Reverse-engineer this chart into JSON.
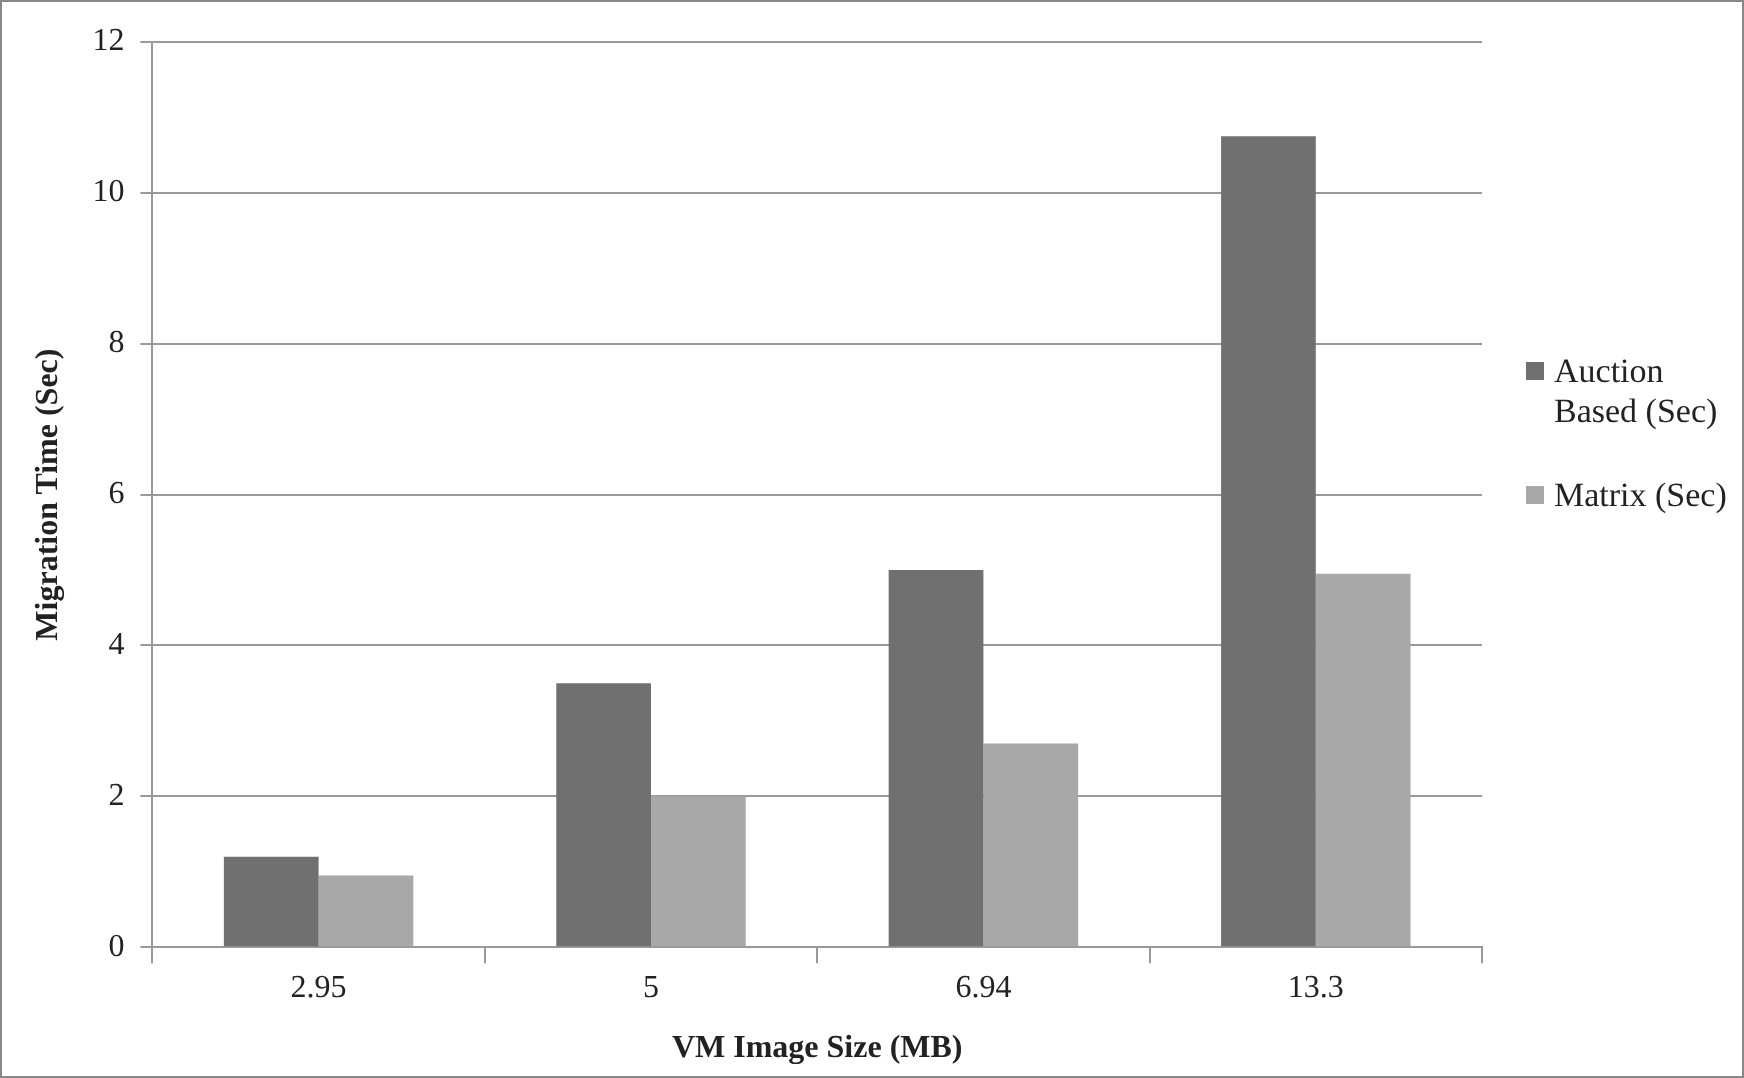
{
  "chart_data": {
    "type": "bar",
    "xlabel": "VM Image Size (MB)",
    "ylabel": "Migration Time (Sec)",
    "categories": [
      "2.95",
      "5",
      "6.94",
      "13.3"
    ],
    "series": [
      {
        "name": "Auction Based (Sec)",
        "color": "#707070",
        "values": [
          1.2,
          3.5,
          5.0,
          10.75
        ]
      },
      {
        "name": "Matrix (Sec)",
        "color": "#a8a8a8",
        "values": [
          0.95,
          2.0,
          2.7,
          4.95
        ]
      }
    ],
    "ylim": [
      0,
      12
    ],
    "yticks": [
      0,
      2,
      4,
      6,
      8,
      10,
      12
    ],
    "grid": "y",
    "legend": "right"
  }
}
